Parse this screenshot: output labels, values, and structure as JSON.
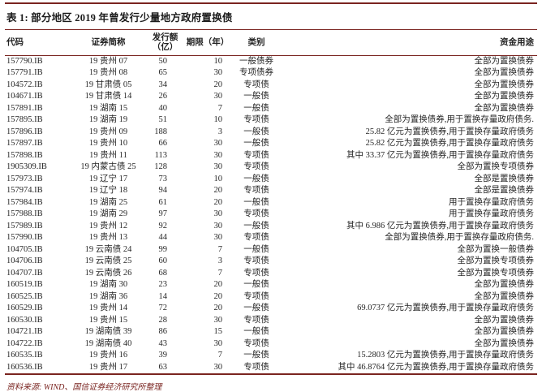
{
  "page": {
    "title": "表 1: 部分地区 2019 年曾发行少量地方政府置换债",
    "source": "资料来源: WIND、国信证券经济研究所整理",
    "accent_color": "#7a2420"
  },
  "table": {
    "headers": [
      {
        "line1": "代码",
        "line2": ""
      },
      {
        "line1": "证券简称",
        "line2": ""
      },
      {
        "line1": "发行额",
        "line2": "（亿）"
      },
      {
        "line1": "期限（年）",
        "line2": ""
      },
      {
        "line1": "类别",
        "line2": ""
      },
      {
        "line1": "资金用途",
        "line2": ""
      }
    ],
    "rows": [
      {
        "code": "157790.IB",
        "name": "19 贵州 07",
        "amount": "50",
        "term": "10",
        "category": "一般债券",
        "usage": "全部为置换债券"
      },
      {
        "code": "157791.IB",
        "name": "19 贵州 08",
        "amount": "65",
        "term": "30",
        "category": "专项债券",
        "usage": "全部为置换债券"
      },
      {
        "code": "104572.IB",
        "name": "19 甘肃债 05",
        "amount": "34",
        "term": "20",
        "category": "专项债",
        "usage": "全部为置换债券"
      },
      {
        "code": "104671.IB",
        "name": "19 甘肃债 14",
        "amount": "26",
        "term": "30",
        "category": "一般债",
        "usage": "全部为置换债券"
      },
      {
        "code": "157891.IB",
        "name": "19 湖南 15",
        "amount": "40",
        "term": "7",
        "category": "一般债",
        "usage": "全部为置换债券"
      },
      {
        "code": "157895.IB",
        "name": "19 湖南 19",
        "amount": "51",
        "term": "10",
        "category": "专项债",
        "usage": "全部为置换债券,用于置换存量政府债务."
      },
      {
        "code": "157896.IB",
        "name": "19 贵州 09",
        "amount": "188",
        "term": "3",
        "category": "一般债",
        "usage": "25.82 亿元为置换债券,用于置换存量政府债务"
      },
      {
        "code": "157897.IB",
        "name": "19 贵州 10",
        "amount": "66",
        "term": "30",
        "category": "一般债",
        "usage": "25.82 亿元为置换债券,用于置换存量政府债务"
      },
      {
        "code": "157898.IB",
        "name": "19 贵州 11",
        "amount": "113",
        "term": "30",
        "category": "专项债",
        "usage": "其中 33.37 亿元为置换债券,用于置换存量政府债务"
      },
      {
        "code": "1905309.IB",
        "name": "19 内蒙古债 25",
        "amount": "128",
        "term": "30",
        "category": "专项债",
        "usage": "全部为置换专项债券"
      },
      {
        "code": "157973.IB",
        "name": "19 辽宁 17",
        "amount": "73",
        "term": "10",
        "category": "一般债",
        "usage": "全部是置换债券"
      },
      {
        "code": "157974.IB",
        "name": "19 辽宁 18",
        "amount": "94",
        "term": "20",
        "category": "专项债",
        "usage": "全部是置换债券"
      },
      {
        "code": "157984.IB",
        "name": "19 湖南 25",
        "amount": "61",
        "term": "20",
        "category": "一般债",
        "usage": "用于置换存量政府债务"
      },
      {
        "code": "157988.IB",
        "name": "19 湖南 29",
        "amount": "97",
        "term": "30",
        "category": "专项债",
        "usage": "用于置换存量政府债务"
      },
      {
        "code": "157989.IB",
        "name": "19 贵州 12",
        "amount": "92",
        "term": "30",
        "category": "一般债",
        "usage": "其中 6.986 亿元为置换债券,用于置换存量政府债务"
      },
      {
        "code": "157990.IB",
        "name": "19 贵州 13",
        "amount": "44",
        "term": "30",
        "category": "专项债",
        "usage": "全部为置换债券,用于置换存量政府债务."
      },
      {
        "code": "104705.IB",
        "name": "19 云南债 24",
        "amount": "99",
        "term": "7",
        "category": "一般债",
        "usage": "全部为置换一般债券"
      },
      {
        "code": "104706.IB",
        "name": "19 云南债 25",
        "amount": "60",
        "term": "3",
        "category": "专项债",
        "usage": "全部为置换专项债券"
      },
      {
        "code": "104707.IB",
        "name": "19 云南债 26",
        "amount": "68",
        "term": "7",
        "category": "专项债",
        "usage": "全部为置换专项债券"
      },
      {
        "code": "160519.IB",
        "name": "19 湖南 30",
        "amount": "23",
        "term": "20",
        "category": "一般债",
        "usage": "全部为置换债券"
      },
      {
        "code": "160525.IB",
        "name": "19 湖南 36",
        "amount": "14",
        "term": "20",
        "category": "专项债",
        "usage": "全部为置换债券"
      },
      {
        "code": "160529.IB",
        "name": "19 贵州 14",
        "amount": "72",
        "term": "20",
        "category": "一般债",
        "usage": "69.0737 亿元为置换债券,用于置换存量政府债务"
      },
      {
        "code": "160530.IB",
        "name": "19 贵州 15",
        "amount": "28",
        "term": "30",
        "category": "专项债",
        "usage": "全部为置换债券"
      },
      {
        "code": "104721.IB",
        "name": "19 湖南债 39",
        "amount": "86",
        "term": "15",
        "category": "一般债",
        "usage": "全部为置换债券"
      },
      {
        "code": "104722.IB",
        "name": "19 湖南债 40",
        "amount": "43",
        "term": "30",
        "category": "专项债",
        "usage": "全部为置换债券"
      },
      {
        "code": "160535.IB",
        "name": "19 贵州 16",
        "amount": "39",
        "term": "7",
        "category": "一般债",
        "usage": "15.2803 亿元为置换债券,用于置换存量政府债务"
      },
      {
        "code": "160536.IB",
        "name": "19 贵州 17",
        "amount": "63",
        "term": "30",
        "category": "专项债",
        "usage": "其中 46.8764 亿元为置换债券,用于置换存量政府债务"
      }
    ]
  }
}
